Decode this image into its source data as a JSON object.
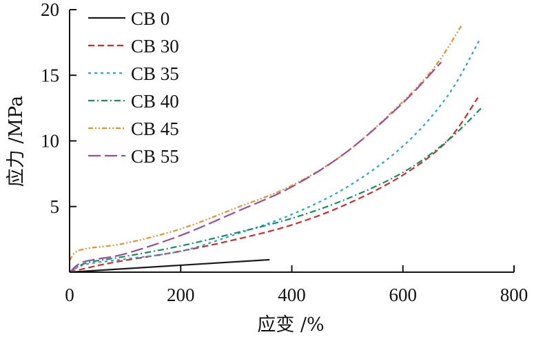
{
  "chart_data": {
    "type": "line",
    "title": "",
    "xlabel": "应变 /%",
    "ylabel": "应力 /MPa",
    "xlim": [
      0,
      800
    ],
    "ylim": [
      0,
      20
    ],
    "xticks": [
      0,
      200,
      400,
      600,
      800
    ],
    "yticks": [
      5,
      10,
      15,
      20
    ],
    "xtick_labels": [
      "0",
      "200",
      "400",
      "600",
      "800"
    ],
    "ytick_labels": [
      "5",
      "10",
      "15",
      "20"
    ],
    "grid": false,
    "legend_position": "top-left",
    "series": [
      {
        "name": "CB 0",
        "color": "#1a1a1a",
        "dash": "solid",
        "x": [
          0,
          360
        ],
        "y": [
          0,
          0.95
        ]
      },
      {
        "name": "CB 30",
        "color": "#d62a2a",
        "dash": "dashed",
        "x": [
          0,
          50,
          100,
          200,
          300,
          400,
          500,
          600,
          680,
          735
        ],
        "y": [
          0,
          0.5,
          0.9,
          1.6,
          2.5,
          3.6,
          5.2,
          7.4,
          10.0,
          13.3
        ]
      },
      {
        "name": "CB 35",
        "color": "#22a7d8",
        "dash": "dotted",
        "x": [
          0,
          30,
          100,
          200,
          300,
          400,
          500,
          600,
          680,
          738
        ],
        "y": [
          0,
          0.6,
          1.0,
          1.6,
          2.9,
          4.4,
          6.5,
          9.6,
          13.4,
          17.7
        ]
      },
      {
        "name": "CB 40",
        "color": "#12915a",
        "dash": "dashdot",
        "x": [
          0,
          30,
          100,
          200,
          300,
          400,
          500,
          600,
          680,
          741
        ],
        "y": [
          0,
          0.7,
          1.2,
          2.0,
          3.0,
          4.1,
          5.6,
          7.6,
          10.0,
          12.5
        ]
      },
      {
        "name": "CB 45",
        "color": "#e8902c",
        "dash": "dashdotdot",
        "x": [
          0,
          20,
          100,
          200,
          300,
          400,
          500,
          600,
          660,
          707
        ],
        "y": [
          0.9,
          1.7,
          2.2,
          3.3,
          4.9,
          6.6,
          9.2,
          13.0,
          15.8,
          18.9
        ]
      },
      {
        "name": "CB 55",
        "color": "#9b4d9b",
        "dash": "longdash",
        "x": [
          0,
          20,
          50,
          100,
          200,
          300,
          400,
          500,
          600,
          669
        ],
        "y": [
          0,
          0.7,
          1.0,
          1.4,
          2.8,
          4.6,
          6.5,
          9.2,
          12.9,
          16.0
        ]
      }
    ]
  }
}
